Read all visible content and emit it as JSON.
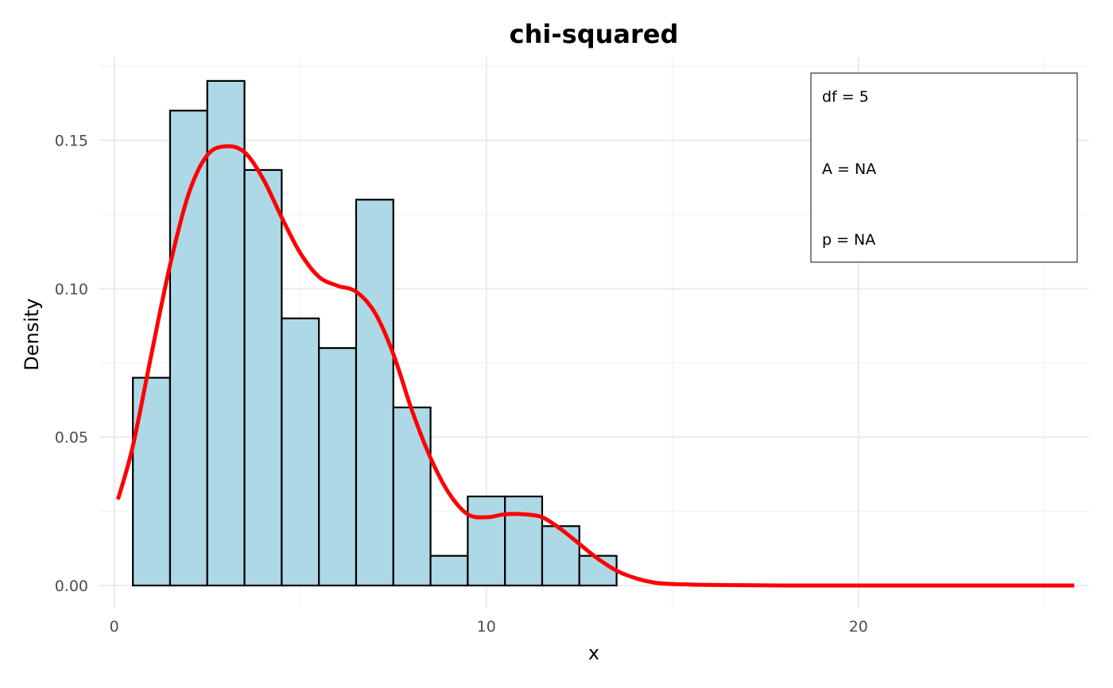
{
  "chart_data": {
    "type": "bar",
    "title": "chi-squared",
    "xlabel": "x",
    "ylabel": "Density",
    "xlim": [
      -0.4,
      26.2
    ],
    "ylim": [
      -0.0075,
      0.178
    ],
    "x_ticks": [
      0,
      10,
      20
    ],
    "y_ticks": [
      0.0,
      0.05,
      0.1,
      0.15
    ],
    "x_tick_labels": [
      "0",
      "10",
      "20"
    ],
    "y_tick_labels": [
      "0.00",
      "0.05",
      "0.10",
      "0.15"
    ],
    "grid": true,
    "histogram": {
      "bin_starts": [
        0.5,
        1.5,
        2.5,
        3.5,
        4.5,
        5.5,
        6.5,
        7.5,
        8.5,
        9.5,
        10.5,
        11.5,
        12.5
      ],
      "bin_width": 1,
      "values": [
        0.07,
        0.16,
        0.17,
        0.14,
        0.09,
        0.08,
        0.13,
        0.06,
        0.01,
        0.03,
        0.03,
        0.02,
        0.01
      ],
      "fill": "#add8e6",
      "stroke": "#000000"
    },
    "density_curve": {
      "color": "#ff0000",
      "x": [
        0.1,
        0.5,
        1,
        1.5,
        2,
        2.5,
        3,
        3.5,
        4,
        4.5,
        5,
        5.5,
        6,
        6.5,
        7,
        7.5,
        8,
        8.5,
        9,
        9.5,
        10,
        10.5,
        11,
        11.5,
        12,
        12.5,
        13,
        13.5,
        14,
        14.5,
        15,
        16,
        17,
        18,
        20,
        22,
        24,
        25.8
      ],
      "y": [
        0.029,
        0.047,
        0.078,
        0.108,
        0.132,
        0.145,
        0.148,
        0.146,
        0.137,
        0.124,
        0.112,
        0.104,
        0.101,
        0.099,
        0.092,
        0.078,
        0.059,
        0.043,
        0.031,
        0.024,
        0.023,
        0.024,
        0.024,
        0.023,
        0.019,
        0.014,
        0.009,
        0.005,
        0.0025,
        0.001,
        0.0005,
        0.0002,
        0.0001,
        0,
        0,
        0,
        0,
        0
      ]
    },
    "legend": {
      "placement": "top-right",
      "entries": [
        "df = 5",
        "A = NA",
        "p = NA"
      ]
    }
  }
}
